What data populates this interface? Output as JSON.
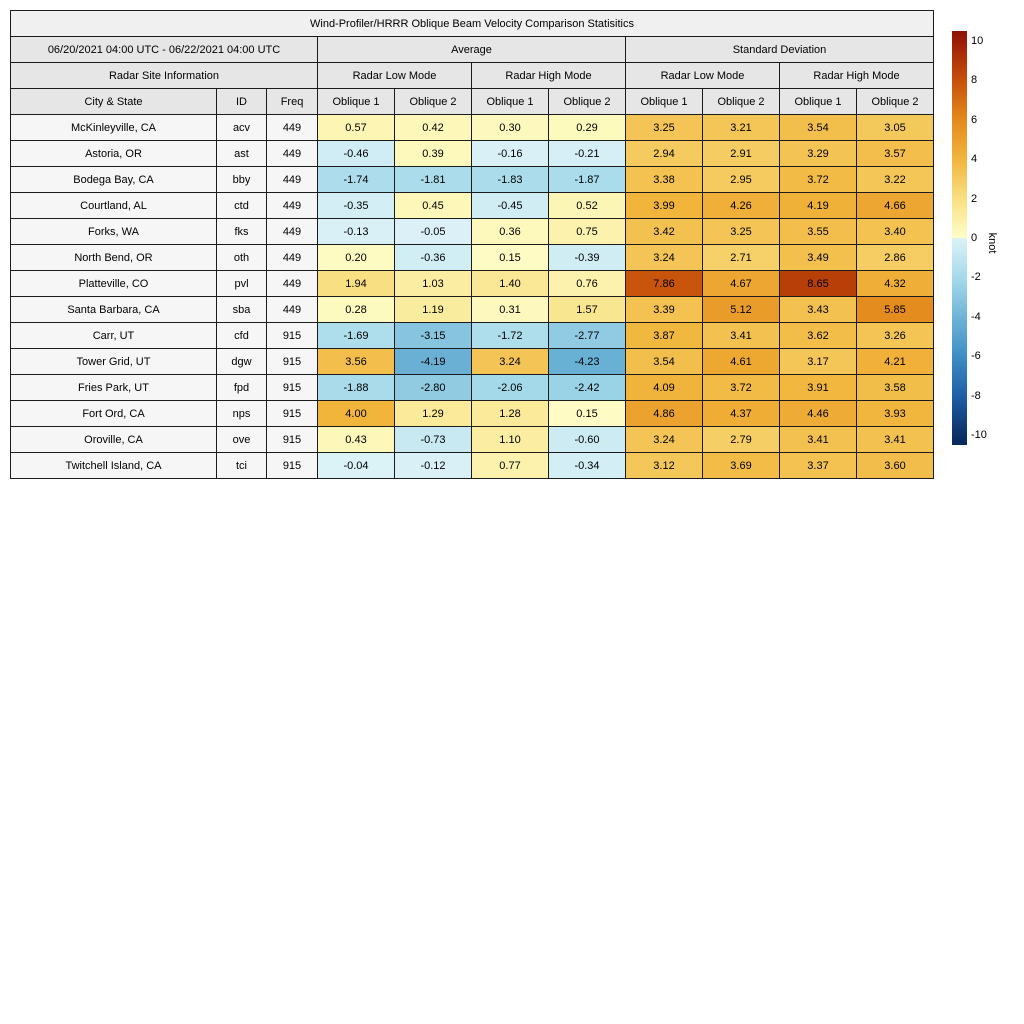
{
  "header": {
    "title": "Wind-Profiler/HRRR Oblique Beam Velocity Comparison Statisitics",
    "date_range": "06/20/2021 04:00 UTC - 06/22/2021 04:00 UTC",
    "group_average": "Average",
    "group_std": "Standard Deviation",
    "site_info": "Radar Site Information",
    "mode_low": "Radar Low Mode",
    "mode_high": "Radar High Mode",
    "col_city": "City & State",
    "col_id": "ID",
    "col_freq": "Freq",
    "col_oblique1": "Oblique 1",
    "col_oblique2": "Oblique 2"
  },
  "chart_data": {
    "type": "heatmap",
    "title": "Wind-Profiler/HRRR Oblique Beam Velocity Comparison Statisitics",
    "date_range": "06/20/2021 04:00 UTC - 06/22/2021 04:00 UTC",
    "value_columns": [
      {
        "group": "Average",
        "mode": "Radar Low Mode",
        "beam": "Oblique 1"
      },
      {
        "group": "Average",
        "mode": "Radar Low Mode",
        "beam": "Oblique 2"
      },
      {
        "group": "Average",
        "mode": "Radar High Mode",
        "beam": "Oblique 1"
      },
      {
        "group": "Average",
        "mode": "Radar High Mode",
        "beam": "Oblique 2"
      },
      {
        "group": "Standard Deviation",
        "mode": "Radar Low Mode",
        "beam": "Oblique 1"
      },
      {
        "group": "Standard Deviation",
        "mode": "Radar Low Mode",
        "beam": "Oblique 2"
      },
      {
        "group": "Standard Deviation",
        "mode": "Radar High Mode",
        "beam": "Oblique 1"
      },
      {
        "group": "Standard Deviation",
        "mode": "Radar High Mode",
        "beam": "Oblique 2"
      }
    ],
    "rows": [
      {
        "city": "McKinleyville, CA",
        "id": "acv",
        "freq": 449,
        "values": [
          0.57,
          0.42,
          0.3,
          0.29,
          3.25,
          3.21,
          3.54,
          3.05
        ]
      },
      {
        "city": "Astoria, OR",
        "id": "ast",
        "freq": 449,
        "values": [
          -0.46,
          0.39,
          -0.16,
          -0.21,
          2.94,
          2.91,
          3.29,
          3.57
        ]
      },
      {
        "city": "Bodega Bay, CA",
        "id": "bby",
        "freq": 449,
        "values": [
          -1.74,
          -1.81,
          -1.83,
          -1.87,
          3.38,
          2.95,
          3.72,
          3.22
        ]
      },
      {
        "city": "Courtland, AL",
        "id": "ctd",
        "freq": 449,
        "values": [
          -0.35,
          0.45,
          -0.45,
          0.52,
          3.99,
          4.26,
          4.19,
          4.66
        ]
      },
      {
        "city": "Forks, WA",
        "id": "fks",
        "freq": 449,
        "values": [
          -0.13,
          -0.05,
          0.36,
          0.75,
          3.42,
          3.25,
          3.55,
          3.4
        ]
      },
      {
        "city": "North Bend, OR",
        "id": "oth",
        "freq": 449,
        "values": [
          0.2,
          -0.36,
          0.15,
          -0.39,
          3.24,
          2.71,
          3.49,
          2.86
        ]
      },
      {
        "city": "Platteville, CO",
        "id": "pvl",
        "freq": 449,
        "values": [
          1.94,
          1.03,
          1.4,
          0.76,
          7.86,
          4.67,
          8.65,
          4.32
        ]
      },
      {
        "city": "Santa Barbara, CA",
        "id": "sba",
        "freq": 449,
        "values": [
          0.28,
          1.19,
          0.31,
          1.57,
          3.39,
          5.12,
          3.43,
          5.85
        ]
      },
      {
        "city": "Carr, UT",
        "id": "cfd",
        "freq": 915,
        "values": [
          -1.69,
          -3.15,
          -1.72,
          -2.77,
          3.87,
          3.41,
          3.62,
          3.26
        ]
      },
      {
        "city": "Tower Grid, UT",
        "id": "dgw",
        "freq": 915,
        "values": [
          3.56,
          -4.19,
          3.24,
          -4.23,
          3.54,
          4.61,
          3.17,
          4.21
        ]
      },
      {
        "city": "Fries Park, UT",
        "id": "fpd",
        "freq": 915,
        "values": [
          -1.88,
          -2.8,
          -2.06,
          -2.42,
          4.09,
          3.72,
          3.91,
          3.58
        ]
      },
      {
        "city": "Fort Ord, CA",
        "id": "nps",
        "freq": 915,
        "values": [
          4.0,
          1.29,
          1.28,
          0.15,
          4.86,
          4.37,
          4.46,
          3.93
        ]
      },
      {
        "city": "Oroville, CA",
        "id": "ove",
        "freq": 915,
        "values": [
          0.43,
          -0.73,
          1.1,
          -0.6,
          3.24,
          2.79,
          3.41,
          3.41
        ]
      },
      {
        "city": "Twitchell Island, CA",
        "id": "tci",
        "freq": 915,
        "values": [
          -0.04,
          -0.12,
          0.77,
          -0.34,
          3.12,
          3.69,
          3.37,
          3.6
        ]
      }
    ],
    "colorbar": {
      "unit": "knot",
      "min": -10,
      "max": 10,
      "extend": 10.5,
      "ticks": [
        10,
        8,
        6,
        4,
        2,
        0,
        -2,
        -4,
        -6,
        -8,
        -10
      ],
      "stops": [
        {
          "v": -10.5,
          "c": "#08295B"
        },
        {
          "v": -10,
          "c": "#0B3066"
        },
        {
          "v": -8,
          "c": "#1F5FA7"
        },
        {
          "v": -6,
          "c": "#3E8EC4"
        },
        {
          "v": -4,
          "c": "#6FB4D7"
        },
        {
          "v": -2,
          "c": "#A6DAEA"
        },
        {
          "v": -0.001,
          "c": "#DCF2F7"
        },
        {
          "v": 0.001,
          "c": "#FEFEC9"
        },
        {
          "v": 2,
          "c": "#F8DF80"
        },
        {
          "v": 4,
          "c": "#F1B53C"
        },
        {
          "v": 6,
          "c": "#E4891C"
        },
        {
          "v": 8,
          "c": "#C7500A"
        },
        {
          "v": 10,
          "c": "#9B1B07"
        },
        {
          "v": 10.5,
          "c": "#8A1205"
        }
      ]
    }
  }
}
